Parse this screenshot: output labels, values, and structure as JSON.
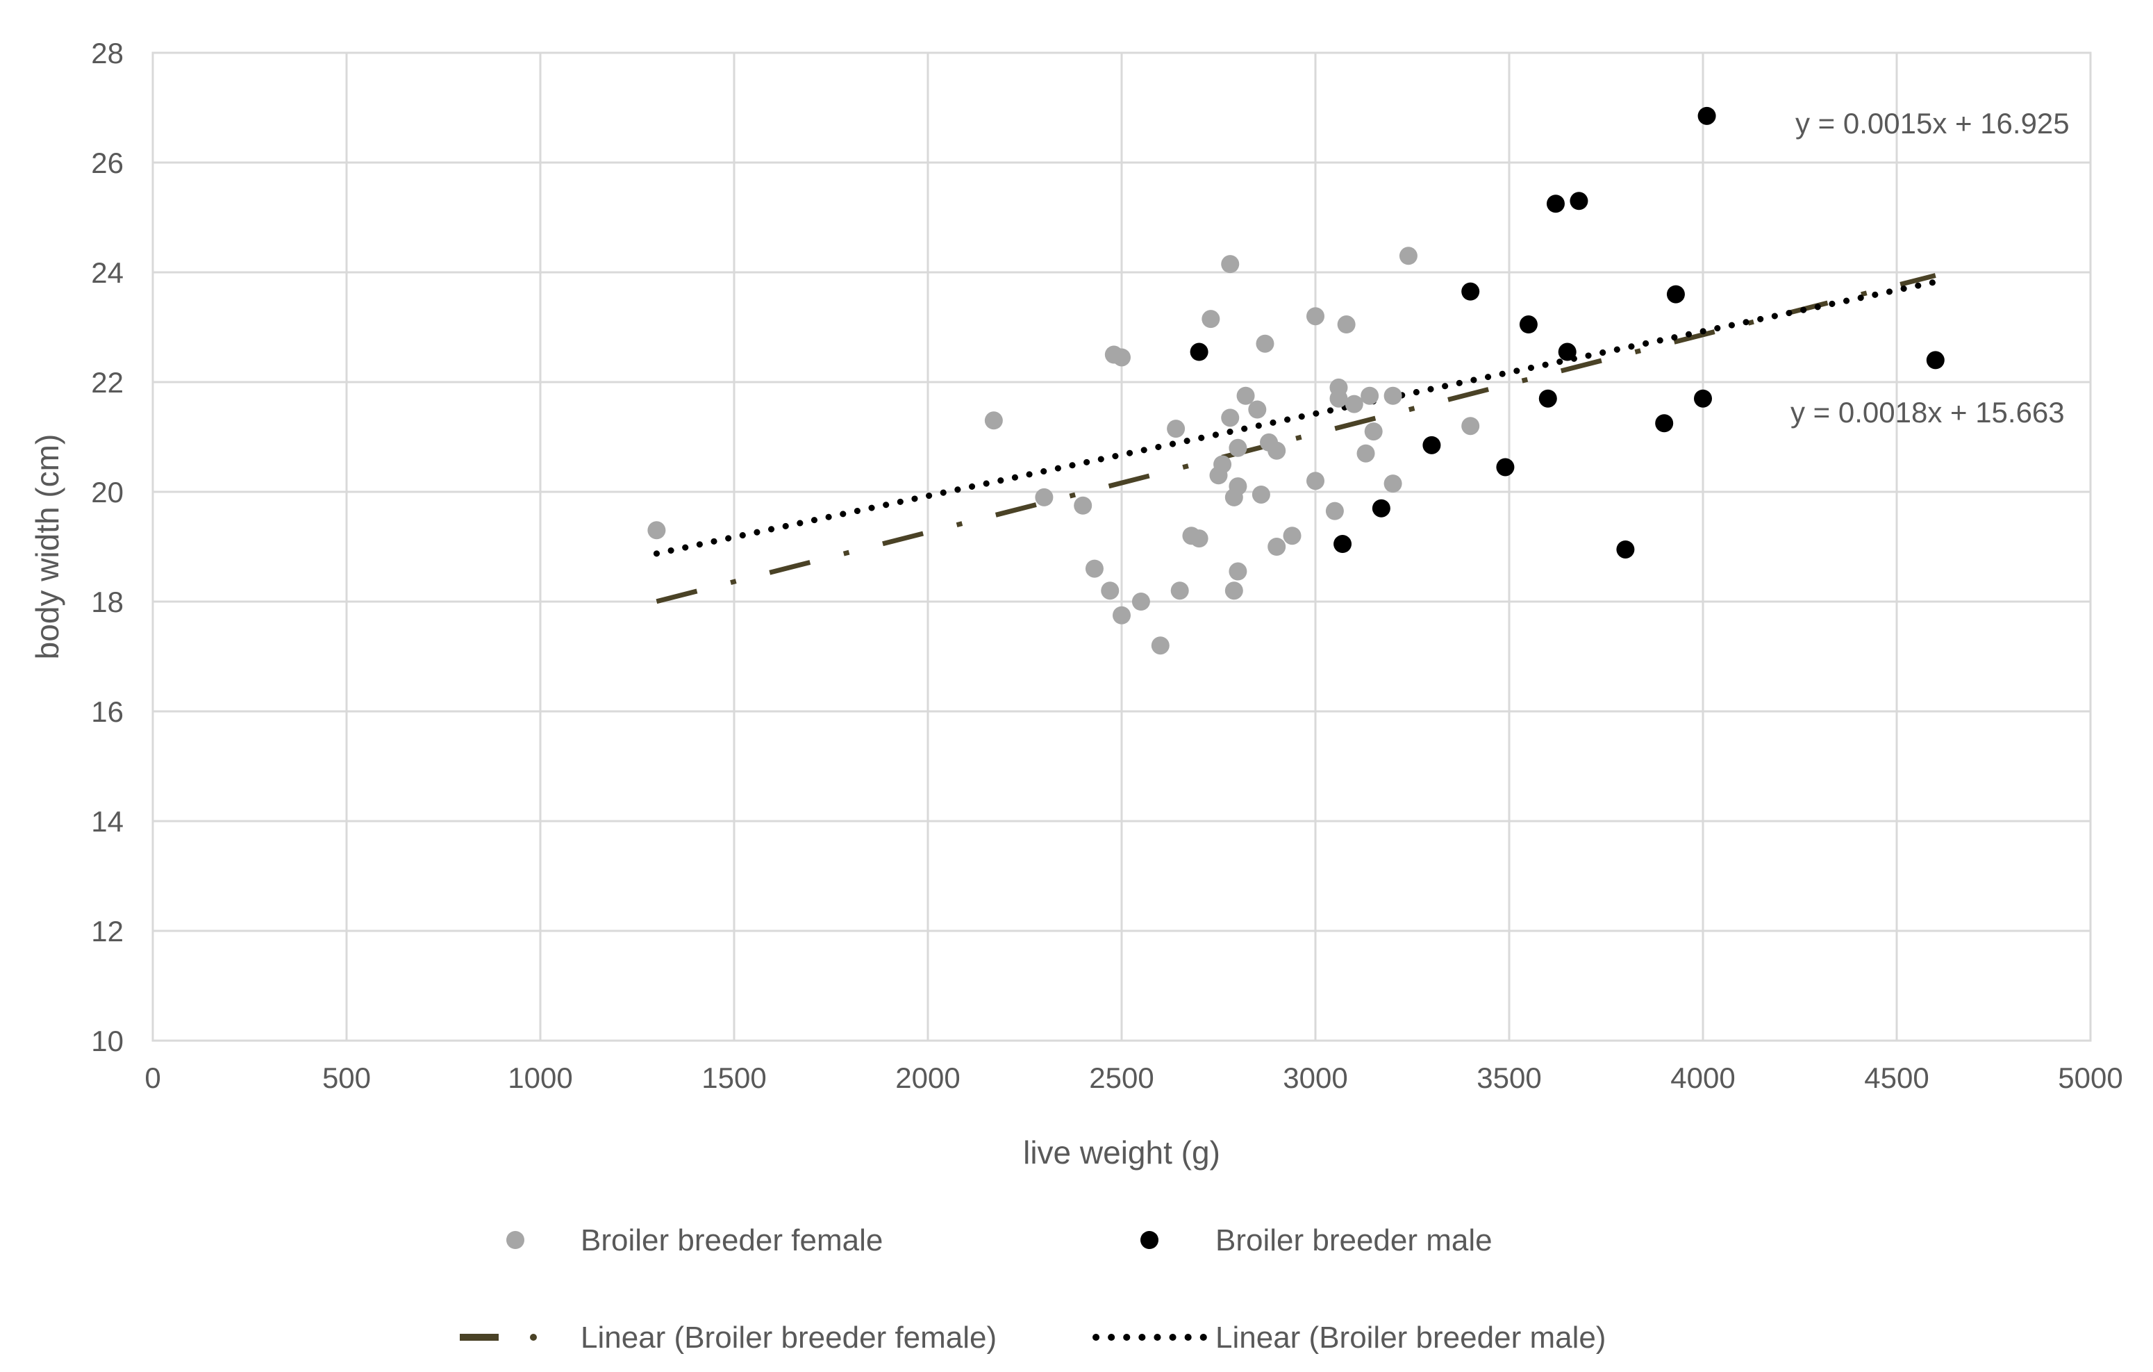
{
  "chart_data": {
    "type": "scatter",
    "title": "",
    "xlabel": "live weight (g)",
    "ylabel": "body width (cm)",
    "xlim": [
      0,
      5000
    ],
    "ylim": [
      10,
      28
    ],
    "x_ticks": [
      0,
      500,
      1000,
      1500,
      2000,
      2500,
      3000,
      3500,
      4000,
      4500,
      5000
    ],
    "y_ticks": [
      10,
      12,
      14,
      16,
      18,
      20,
      22,
      24,
      26,
      28
    ],
    "grid": true,
    "legend_position": "bottom",
    "series": [
      {
        "name": "Broiler breeder female",
        "color": "#a6a6a6",
        "marker": "circle",
        "points": [
          [
            1300,
            19.3
          ],
          [
            2170,
            21.3
          ],
          [
            2300,
            19.9
          ],
          [
            2400,
            19.75
          ],
          [
            2430,
            18.6
          ],
          [
            2470,
            18.2
          ],
          [
            2480,
            22.5
          ],
          [
            2500,
            22.45
          ],
          [
            2500,
            17.75
          ],
          [
            2550,
            18.0
          ],
          [
            2600,
            17.2
          ],
          [
            2640,
            21.15
          ],
          [
            2650,
            18.2
          ],
          [
            2680,
            19.2
          ],
          [
            2700,
            19.15
          ],
          [
            2730,
            23.15
          ],
          [
            2750,
            20.3
          ],
          [
            2760,
            20.5
          ],
          [
            2780,
            24.15
          ],
          [
            2780,
            21.35
          ],
          [
            2790,
            18.2
          ],
          [
            2790,
            19.9
          ],
          [
            2800,
            20.8
          ],
          [
            2800,
            20.1
          ],
          [
            2800,
            18.55
          ],
          [
            2820,
            21.75
          ],
          [
            2850,
            21.5
          ],
          [
            2860,
            19.95
          ],
          [
            2870,
            22.7
          ],
          [
            2880,
            20.9
          ],
          [
            2900,
            20.75
          ],
          [
            2900,
            19.0
          ],
          [
            2940,
            19.2
          ],
          [
            3000,
            23.2
          ],
          [
            3000,
            20.2
          ],
          [
            3050,
            19.65
          ],
          [
            3060,
            21.9
          ],
          [
            3060,
            21.7
          ],
          [
            3080,
            23.05
          ],
          [
            3100,
            21.6
          ],
          [
            3130,
            20.7
          ],
          [
            3140,
            21.75
          ],
          [
            3150,
            21.1
          ],
          [
            3200,
            21.75
          ],
          [
            3200,
            20.15
          ],
          [
            3240,
            24.3
          ],
          [
            3400,
            21.2
          ]
        ]
      },
      {
        "name": "Broiler breeder male",
        "color": "#000000",
        "marker": "circle",
        "points": [
          [
            2700,
            22.55
          ],
          [
            3070,
            19.05
          ],
          [
            3170,
            19.7
          ],
          [
            3300,
            20.85
          ],
          [
            3400,
            23.65
          ],
          [
            3490,
            20.45
          ],
          [
            3550,
            23.05
          ],
          [
            3600,
            21.7
          ],
          [
            3620,
            25.25
          ],
          [
            3650,
            22.55
          ],
          [
            3680,
            25.3
          ],
          [
            3800,
            18.95
          ],
          [
            3900,
            21.25
          ],
          [
            3930,
            23.6
          ],
          [
            4000,
            21.7
          ],
          [
            4010,
            26.85
          ],
          [
            4600,
            22.4
          ]
        ]
      }
    ],
    "trendlines": [
      {
        "name": "Linear (Broiler breeder female)",
        "color": "#4a4226",
        "style": "long-dash-dot",
        "slope": 0.0018,
        "intercept": 15.663,
        "x_range": [
          1300,
          4600
        ],
        "equation": "y = 0.0018x + 15.663"
      },
      {
        "name": "Linear (Broiler breeder male)",
        "color": "#000000",
        "style": "round-dot",
        "slope": 0.0015,
        "intercept": 16.925,
        "x_range": [
          1300,
          4600
        ],
        "equation": "y = 0.0015x + 16.925"
      }
    ]
  }
}
